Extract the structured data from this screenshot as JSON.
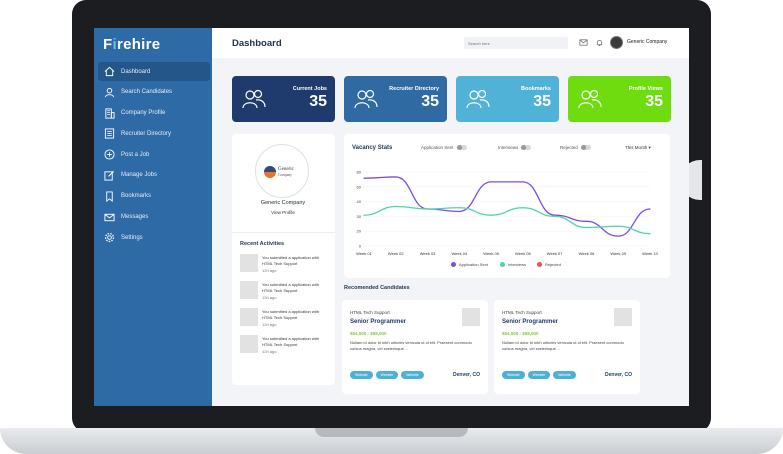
{
  "logo": {
    "part1": "F",
    "accent": "i",
    "part2": "rehire"
  },
  "sidebar": {
    "items": [
      {
        "label": "Dashboard",
        "icon": "home-icon"
      },
      {
        "label": "Search Candidates",
        "icon": "user-search-icon"
      },
      {
        "label": "Company Profile",
        "icon": "building-icon"
      },
      {
        "label": "Recruiter Directory",
        "icon": "list-icon"
      },
      {
        "label": "Post a Job",
        "icon": "plus-circle-icon"
      },
      {
        "label": "Manage Jobs",
        "icon": "edit-icon"
      },
      {
        "label": "Bookmarks",
        "icon": "bookmark-icon"
      },
      {
        "label": "Messages",
        "icon": "mail-icon"
      },
      {
        "label": "Settings",
        "icon": "gear-icon"
      }
    ]
  },
  "header": {
    "title": "Dashboard",
    "search_placeholder": "Search here",
    "company": "Generic Company"
  },
  "stats": [
    {
      "label": "Current Jobs",
      "value": "35",
      "color": "#1f3b6e"
    },
    {
      "label": "Recruiter Directory",
      "value": "35",
      "color": "#2f6aa3"
    },
    {
      "label": "Bookmarks",
      "value": "35",
      "color": "#4fb2d6"
    },
    {
      "label": "Profile Views",
      "value": "35",
      "color": "#6fdc0f"
    }
  ],
  "profile": {
    "logo_line1": "Generic",
    "logo_line2": "Company",
    "name": "Generic Company",
    "link": "View Profile"
  },
  "activities": {
    "title": "Recent Activities",
    "items": [
      {
        "text": "You submitted a application with HTML Tech Support",
        "time": "12h ago"
      },
      {
        "text": "You submitted a application with HTML Tech Support",
        "time": "12h ago"
      },
      {
        "text": "You submitted a application with HTML Tech Support",
        "time": "12h ago"
      },
      {
        "text": "You submitted a application with HTML Tech Support",
        "time": "12h ago"
      }
    ]
  },
  "chart_card": {
    "title": "Vacancy Stats",
    "filters": [
      "Application Sent",
      "Interviews",
      "Rejected"
    ],
    "period": "This Month ▾"
  },
  "chart_data": {
    "type": "line",
    "categories": [
      "Week 01",
      "Week 02",
      "Week 03",
      "Week 04",
      "Week 05",
      "Week 06",
      "Week 07",
      "Week 08",
      "Week 09",
      "Week 10"
    ],
    "series": [
      {
        "name": "Application Sent",
        "color": "#7b4ee0",
        "values": [
          55,
          56,
          30,
          28,
          52,
          52,
          25,
          20,
          8,
          30
        ]
      },
      {
        "name": "Interviews",
        "color": "#4fd3a8",
        "values": [
          25,
          32,
          30,
          31,
          25,
          31,
          24,
          15,
          16,
          10
        ]
      }
    ],
    "legend": [
      {
        "name": "Application Sent",
        "color": "#7b4ee0"
      },
      {
        "name": "Interviews",
        "color": "#4fd3a8"
      },
      {
        "name": "Rejected",
        "color": "#e8534f"
      }
    ],
    "ylim": [
      0,
      60
    ],
    "yticks": [
      "0",
      "20",
      "30",
      "40",
      "60",
      "80"
    ],
    "legend_position": "bottom"
  },
  "candidates": {
    "title": "Recomended Candidates",
    "items": [
      {
        "category": "HTML Tech Support",
        "role": "Senior Programmer",
        "salary": "$54,000 - $58,000",
        "desc": "Nullam id dolor id nibh ultricies vehicula ut id elit. Praesent commodo cursus magna, vel scelerisque ...",
        "tags": [
          "Website",
          "Website",
          "Website"
        ],
        "location": "Denver, CO"
      },
      {
        "category": "HTML Tech Support",
        "role": "Senior Programmer",
        "salary": "$54,000 - $58,000",
        "desc": "Nullam id dolor id nibh ultricies vehicula ut id elit. Praesent commodo cursus magna, vel scelerisque ...",
        "tags": [
          "Website",
          "Website",
          "Website"
        ],
        "location": "Denver, CO"
      }
    ]
  }
}
